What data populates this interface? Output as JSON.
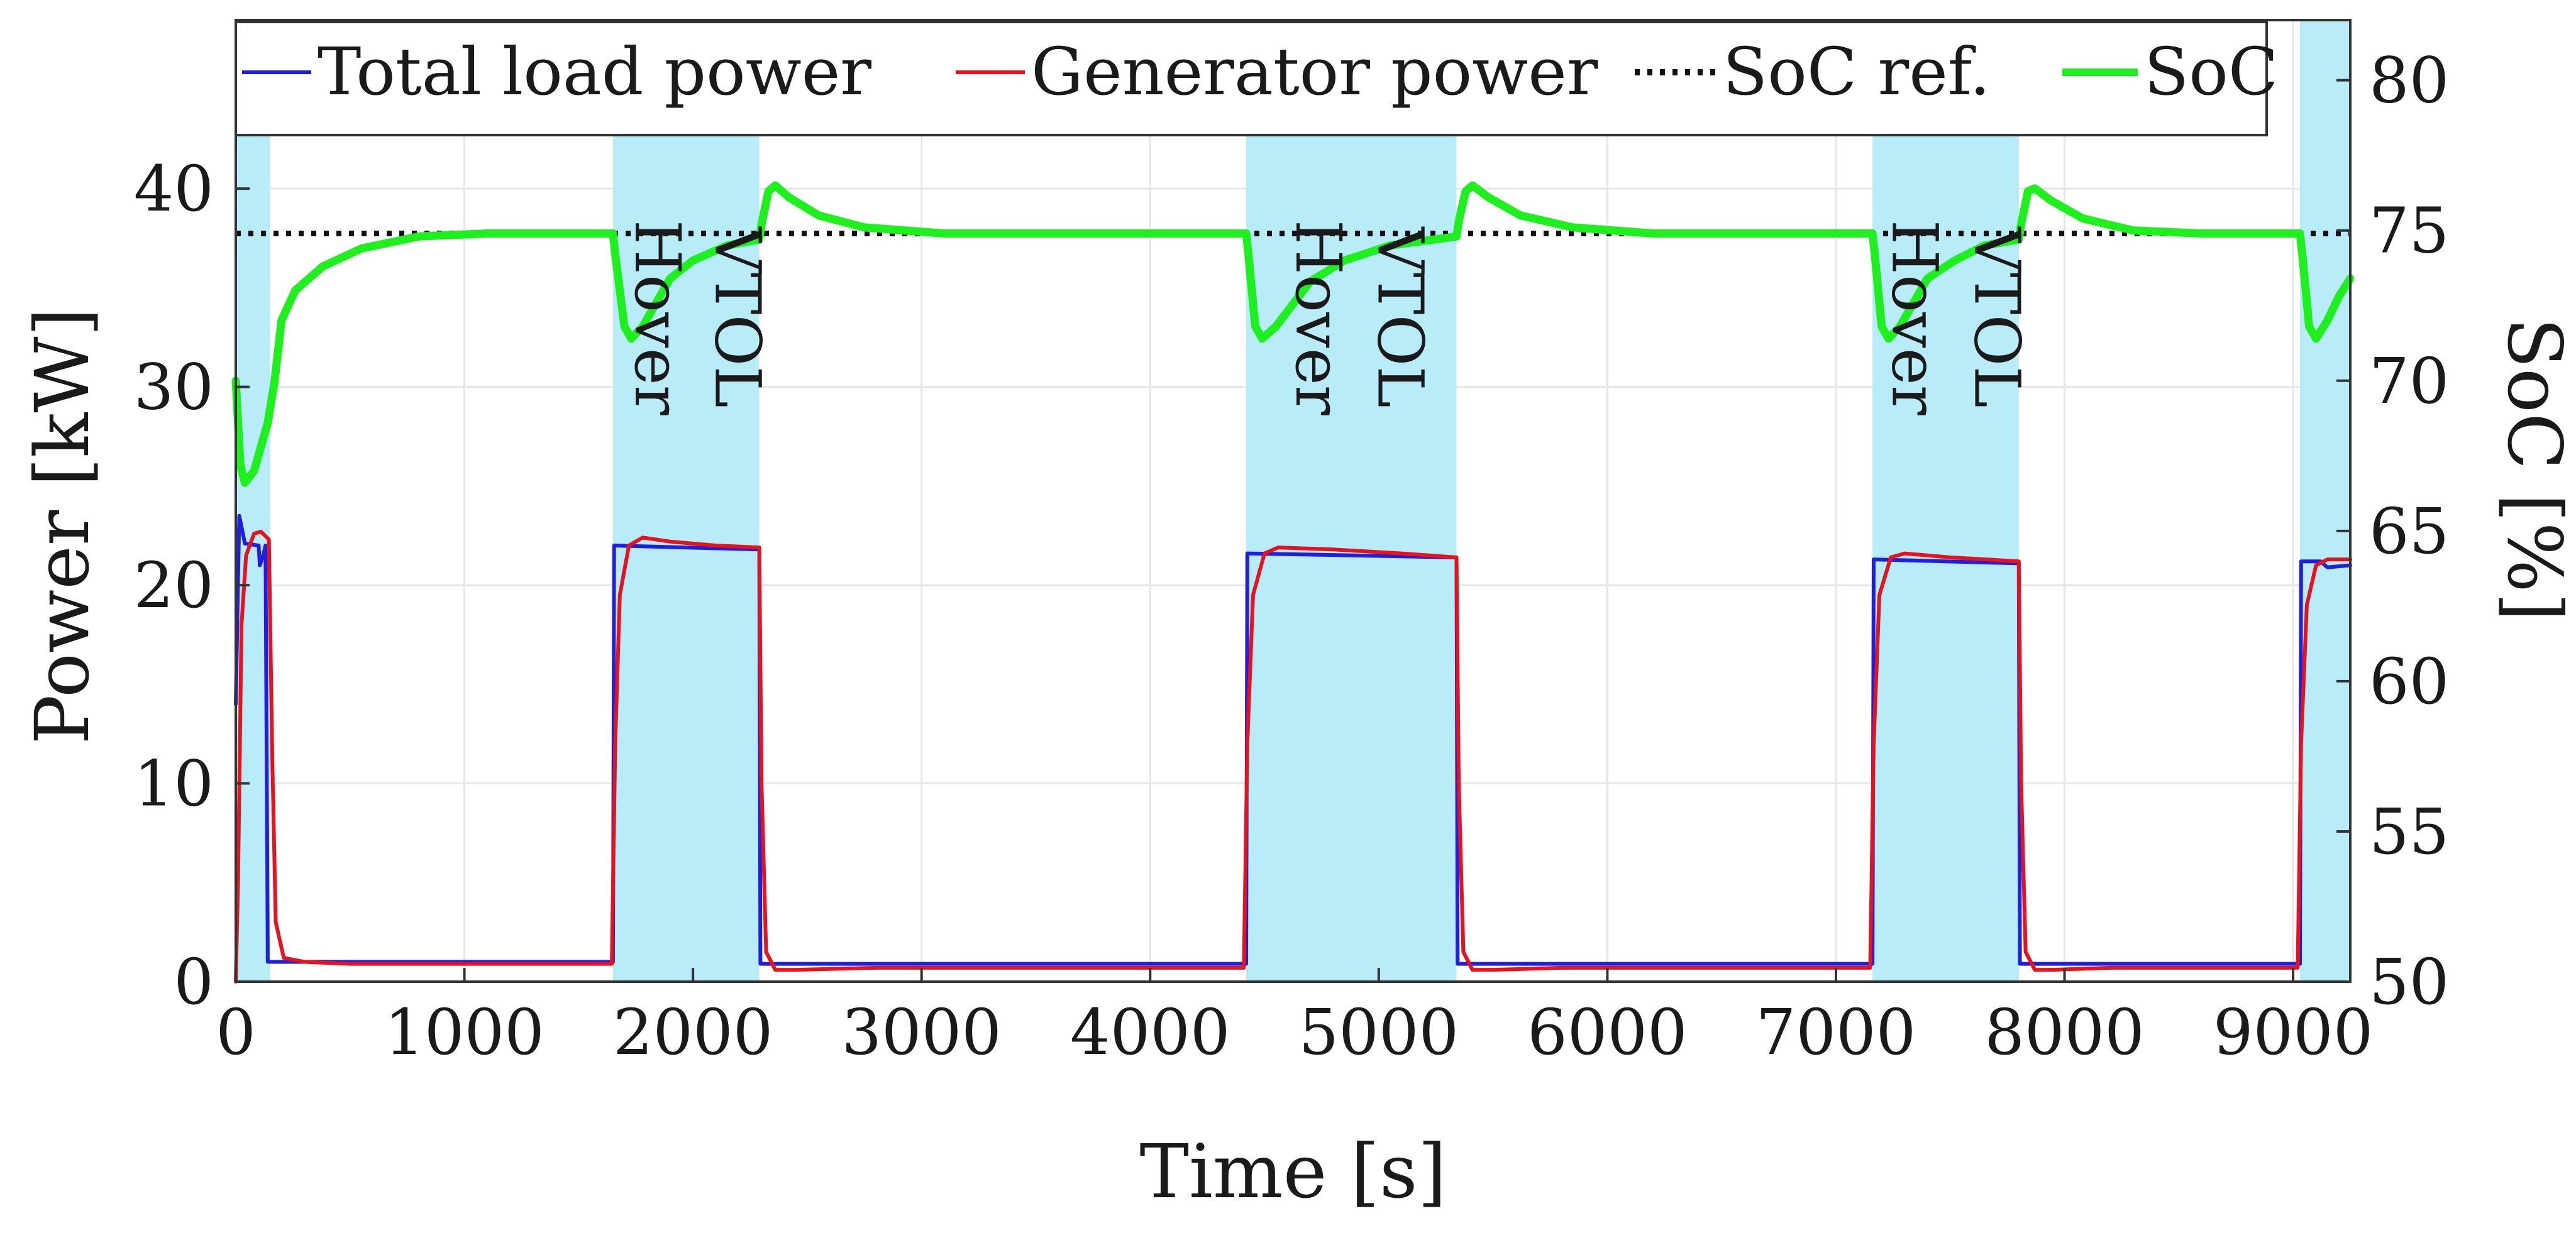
{
  "chart_data": {
    "type": "line",
    "title": "",
    "xlabel": "Time [s]",
    "ylabel_left": "Power [kW]",
    "ylabel_right": "SoC [%]",
    "xlim": [
      0,
      9250
    ],
    "ylim_left": [
      0,
      48.5
    ],
    "ylim_right": [
      50,
      82
    ],
    "x_ticks": [
      0,
      1000,
      2000,
      3000,
      4000,
      5000,
      6000,
      7000,
      8000,
      9000
    ],
    "y_left_ticks": [
      0,
      10,
      20,
      30,
      40
    ],
    "y_right_ticks": [
      50,
      55,
      60,
      65,
      70,
      75,
      80
    ],
    "grid": true,
    "legend_position": "top",
    "legend": [
      "Total load power",
      "Generator power",
      "SoC ref.",
      "SoC"
    ],
    "colors": {
      "load": "#1f1fe0",
      "generator": "#e8121c",
      "soc_ref": "#111111",
      "soc": "#1ef01e",
      "region": "#b8ecf8",
      "grid": "#e6e6e6"
    },
    "shaded_regions": [
      {
        "x0": 0,
        "x1": 150
      },
      {
        "x0": 1650,
        "x1": 2290
      },
      {
        "x0": 4420,
        "x1": 5340
      },
      {
        "x0": 7160,
        "x1": 7800
      },
      {
        "x0": 9030,
        "x1": 9250
      }
    ],
    "region_labels": [
      {
        "text": "Hover",
        "x": 1820,
        "y": 33.5
      },
      {
        "text": "VTOL",
        "x": 2170,
        "y": 33.5
      },
      {
        "text": "Hover",
        "x": 4710,
        "y": 33.5
      },
      {
        "text": "VTOL",
        "x": 5070,
        "y": 33.5
      },
      {
        "text": "Hover",
        "x": 7320,
        "y": 33.5
      },
      {
        "text": "VTOL",
        "x": 7680,
        "y": 33.5
      }
    ],
    "series": [
      {
        "name": "Total load power",
        "axis": "left",
        "points": [
          [
            0,
            14
          ],
          [
            15,
            23.5
          ],
          [
            40,
            22.1
          ],
          [
            100,
            22.0
          ],
          [
            105,
            21.0
          ],
          [
            120,
            21.5
          ],
          [
            130,
            22.0
          ],
          [
            140,
            1.0
          ],
          [
            1650,
            1.0
          ],
          [
            1655,
            22.0
          ],
          [
            2290,
            21.8
          ],
          [
            2295,
            0.9
          ],
          [
            4420,
            0.9
          ],
          [
            4425,
            21.6
          ],
          [
            5340,
            21.4
          ],
          [
            5345,
            0.9
          ],
          [
            7160,
            0.9
          ],
          [
            7165,
            21.3
          ],
          [
            7800,
            21.1
          ],
          [
            7805,
            0.9
          ],
          [
            9030,
            0.9
          ],
          [
            9035,
            21.2
          ],
          [
            9120,
            21.2
          ],
          [
            9150,
            20.9
          ],
          [
            9250,
            21.0
          ]
        ]
      },
      {
        "name": "Generator power",
        "axis": "left",
        "points": [
          [
            0,
            0
          ],
          [
            10,
            5
          ],
          [
            25,
            18
          ],
          [
            45,
            21.5
          ],
          [
            80,
            22.6
          ],
          [
            110,
            22.7
          ],
          [
            145,
            22.3
          ],
          [
            160,
            11
          ],
          [
            175,
            3
          ],
          [
            210,
            1.2
          ],
          [
            300,
            1.0
          ],
          [
            500,
            0.9
          ],
          [
            1645,
            0.9
          ],
          [
            1660,
            12
          ],
          [
            1680,
            19.5
          ],
          [
            1720,
            22.0
          ],
          [
            1780,
            22.4
          ],
          [
            1900,
            22.2
          ],
          [
            2100,
            22.0
          ],
          [
            2290,
            21.9
          ],
          [
            2300,
            10
          ],
          [
            2320,
            1.5
          ],
          [
            2360,
            0.6
          ],
          [
            2450,
            0.6
          ],
          [
            2800,
            0.7
          ],
          [
            4410,
            0.7
          ],
          [
            4425,
            12
          ],
          [
            4450,
            19.5
          ],
          [
            4500,
            21.6
          ],
          [
            4560,
            21.9
          ],
          [
            4800,
            21.8
          ],
          [
            5100,
            21.6
          ],
          [
            5340,
            21.4
          ],
          [
            5350,
            10
          ],
          [
            5370,
            1.5
          ],
          [
            5410,
            0.6
          ],
          [
            5500,
            0.6
          ],
          [
            5800,
            0.7
          ],
          [
            7150,
            0.7
          ],
          [
            7165,
            12
          ],
          [
            7190,
            19.5
          ],
          [
            7240,
            21.4
          ],
          [
            7300,
            21.6
          ],
          [
            7500,
            21.4
          ],
          [
            7800,
            21.2
          ],
          [
            7810,
            10
          ],
          [
            7830,
            1.5
          ],
          [
            7870,
            0.6
          ],
          [
            7950,
            0.6
          ],
          [
            8200,
            0.7
          ],
          [
            9020,
            0.7
          ],
          [
            9035,
            12
          ],
          [
            9060,
            19
          ],
          [
            9100,
            21.0
          ],
          [
            9150,
            21.3
          ],
          [
            9250,
            21.3
          ]
        ]
      },
      {
        "name": "SoC ref.",
        "axis": "right",
        "points": [
          [
            0,
            74.9
          ],
          [
            9250,
            74.9
          ]
        ]
      },
      {
        "name": "SoC",
        "axis": "right",
        "points": [
          [
            0,
            70.0
          ],
          [
            20,
            67.2
          ],
          [
            40,
            66.6
          ],
          [
            80,
            67.0
          ],
          [
            140,
            68.6
          ],
          [
            170,
            70.0
          ],
          [
            200,
            72.0
          ],
          [
            260,
            73.0
          ],
          [
            380,
            73.8
          ],
          [
            550,
            74.4
          ],
          [
            800,
            74.8
          ],
          [
            1100,
            74.9
          ],
          [
            1650,
            74.9
          ],
          [
            1660,
            74.2
          ],
          [
            1700,
            71.8
          ],
          [
            1730,
            71.4
          ],
          [
            1780,
            71.8
          ],
          [
            1900,
            73.4
          ],
          [
            2000,
            74.0
          ],
          [
            2150,
            74.5
          ],
          [
            2290,
            74.7
          ],
          [
            2300,
            75.2
          ],
          [
            2330,
            76.3
          ],
          [
            2360,
            76.5
          ],
          [
            2420,
            76.1
          ],
          [
            2550,
            75.5
          ],
          [
            2750,
            75.1
          ],
          [
            3100,
            74.9
          ],
          [
            4420,
            74.9
          ],
          [
            4430,
            74.2
          ],
          [
            4460,
            71.8
          ],
          [
            4490,
            71.4
          ],
          [
            4550,
            71.8
          ],
          [
            4700,
            73.3
          ],
          [
            4850,
            74.0
          ],
          [
            5050,
            74.5
          ],
          [
            5340,
            74.8
          ],
          [
            5350,
            75.3
          ],
          [
            5380,
            76.3
          ],
          [
            5410,
            76.5
          ],
          [
            5480,
            76.1
          ],
          [
            5620,
            75.5
          ],
          [
            5850,
            75.1
          ],
          [
            6200,
            74.9
          ],
          [
            7160,
            74.9
          ],
          [
            7170,
            74.2
          ],
          [
            7200,
            71.8
          ],
          [
            7230,
            71.4
          ],
          [
            7280,
            71.8
          ],
          [
            7400,
            73.4
          ],
          [
            7520,
            74.0
          ],
          [
            7650,
            74.5
          ],
          [
            7800,
            74.7
          ],
          [
            7810,
            75.2
          ],
          [
            7840,
            76.3
          ],
          [
            7870,
            76.4
          ],
          [
            7940,
            76.0
          ],
          [
            8080,
            75.4
          ],
          [
            8300,
            75.0
          ],
          [
            8600,
            74.9
          ],
          [
            9030,
            74.9
          ],
          [
            9040,
            74.2
          ],
          [
            9070,
            71.8
          ],
          [
            9100,
            71.4
          ],
          [
            9150,
            72.0
          ],
          [
            9200,
            72.8
          ],
          [
            9250,
            73.4
          ]
        ]
      }
    ]
  }
}
